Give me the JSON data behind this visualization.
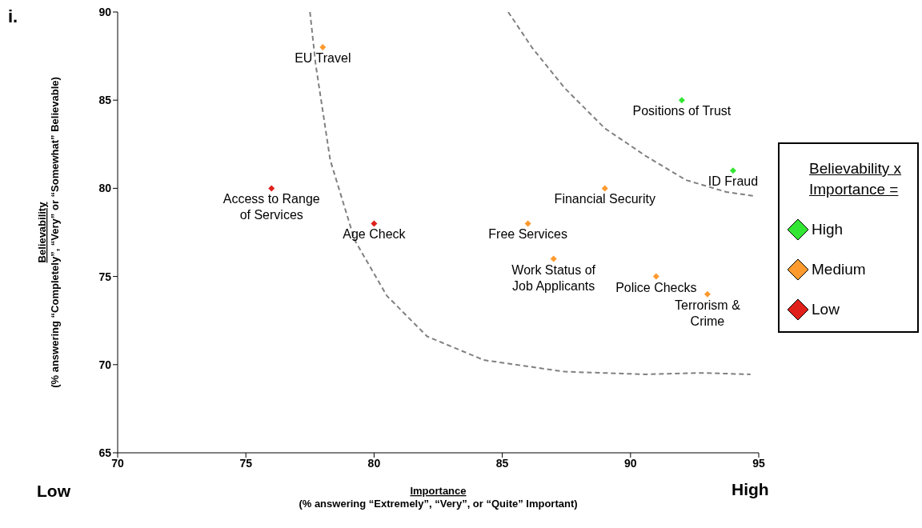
{
  "chart_data": {
    "type": "scatter",
    "xlabel": "Importance\n(% answering “Extremely”,  “Very”, or “Quite” Important)",
    "ylabel": "Believability\n(% answering “Completely”,  “Very” or “Somewhat” Believable)",
    "legend_title": "Believability x\nImportance =",
    "legend": "right",
    "marker": "diamond",
    "grid": false,
    "xlim": [
      70,
      95
    ],
    "xticks": [
      70,
      75,
      80,
      85,
      90,
      95
    ],
    "ylim": [
      65,
      90
    ],
    "yticks": [
      65,
      70,
      75,
      80,
      85,
      90
    ],
    "series": [
      {
        "name": "High",
        "color": "#33e633",
        "x": [
          92,
          94
        ],
        "values": [
          85,
          81
        ]
      },
      {
        "name": "Medium",
        "color": "#ff9a2e",
        "x": [
          78,
          89,
          86,
          87,
          91,
          93
        ],
        "values": [
          88,
          80,
          78,
          76,
          75,
          74
        ]
      },
      {
        "name": "Low",
        "color": "#e0201b",
        "x": [
          76,
          80
        ],
        "values": [
          80,
          78
        ]
      },
      {
        "type": "line",
        "color": "#808080",
        "line_style": "dashed",
        "marker": "none",
        "x": [
          77.5,
          77.72,
          78.29,
          79.24,
          80.5,
          82.07,
          84.28,
          87.43,
          90.6,
          92.8,
          94.68
        ],
        "values": [
          90,
          87.05,
          81.6,
          77.07,
          73.9,
          71.6,
          70.26,
          69.6,
          69.45,
          69.53,
          69.45
        ]
      },
      {
        "type": "line",
        "color": "#808080",
        "line_style": "dashed",
        "marker": "none",
        "x": [
          85.23,
          86.17,
          87.43,
          89.0,
          90.6,
          92.16,
          93.74,
          94.84
        ],
        "values": [
          90,
          87.96,
          85.69,
          83.4,
          81.83,
          80.47,
          79.79,
          79.56
        ]
      }
    ],
    "annotations": [
      "i.",
      "Low",
      "High",
      {
        "text": "EU Travel",
        "x": 78,
        "y": 88
      },
      {
        "text": "Positions of Trust",
        "x": 92,
        "y": 85
      },
      {
        "text": "ID Fraud",
        "x": 94,
        "y": 81
      },
      {
        "text": "Access to Range\nof Services",
        "x": 76,
        "y": 80
      },
      {
        "text": "Age Check",
        "x": 80,
        "y": 78
      },
      {
        "text": "Financial Security",
        "x": 89,
        "y": 80
      },
      {
        "text": "Free Services",
        "x": 86,
        "y": 78
      },
      {
        "text": "Work Status of\nJob Applicants",
        "x": 87,
        "y": 76
      },
      {
        "text": "Police Checks",
        "x": 91,
        "y": 75
      },
      {
        "text": "Terrorism &\nCrime",
        "x": 93,
        "y": 74
      }
    ]
  }
}
